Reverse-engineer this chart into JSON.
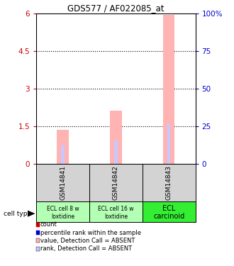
{
  "title": "GDS577 / AF022085_at",
  "samples": [
    "GSM14841",
    "GSM14842",
    "GSM14843"
  ],
  "cell_types_line1": [
    "ECL cell 8 w",
    "ECL cell 16 w",
    "ECL"
  ],
  "cell_types_line2": [
    "loxtidine",
    "loxtidine",
    "carcinoid"
  ],
  "cell_type_colors": [
    "#b3ffb3",
    "#b3ffb3",
    "#33ee33"
  ],
  "bar_values": [
    1.35,
    2.1,
    5.95
  ],
  "rank_values": [
    0.12,
    0.155,
    0.265
  ],
  "ylim": [
    0,
    6
  ],
  "yticks": [
    0,
    1.5,
    3.0,
    4.5,
    6.0
  ],
  "ytick_labels": [
    "0",
    "1.5",
    "3",
    "4.5",
    "6"
  ],
  "y2ticks": [
    0,
    0.25,
    0.5,
    0.75,
    1.0
  ],
  "y2tick_labels": [
    "0",
    "25",
    "50",
    "75",
    "100%"
  ],
  "bar_color_absent": "#ffb3b3",
  "rank_color_absent": "#c8c8ff",
  "count_color": "#cc0000",
  "percentile_color": "#0000cc",
  "bar_width": 0.22,
  "rank_bar_width": 0.06,
  "legend_items": [
    {
      "color": "#cc0000",
      "label": "count"
    },
    {
      "color": "#0000cc",
      "label": "percentile rank within the sample"
    },
    {
      "color": "#ffb3b3",
      "label": "value, Detection Call = ABSENT"
    },
    {
      "color": "#c8c8ff",
      "label": "rank, Detection Call = ABSENT"
    }
  ]
}
